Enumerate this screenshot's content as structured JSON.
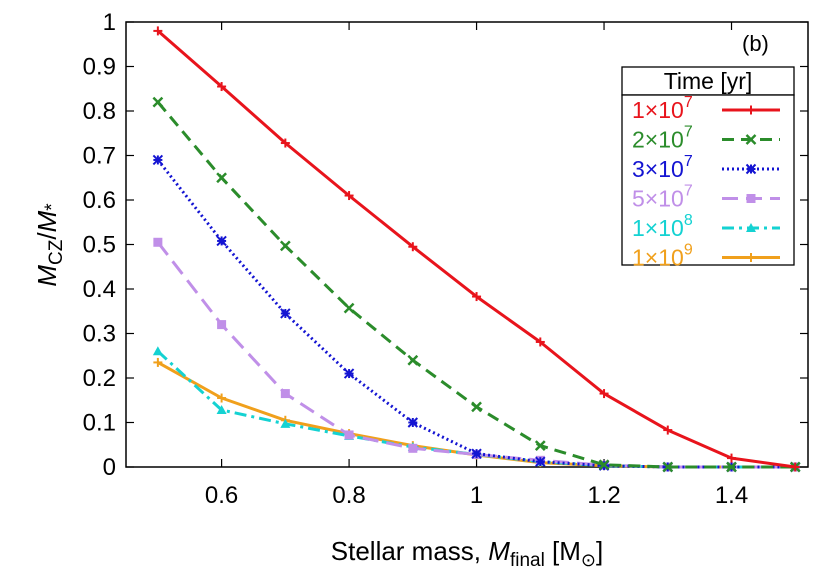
{
  "chart_data": {
    "type": "line",
    "panel_label": "(b)",
    "xlabel": {
      "prefix": "Stellar mass, ",
      "var": "M",
      "sub": "final",
      "unit_open": " [M",
      "unit_symbol": "⊙",
      "unit_close": "]"
    },
    "ylabel": {
      "var": "M",
      "sub": "CZ",
      "slash": "/",
      "var2": "M",
      "star": "*"
    },
    "xlim": [
      0.45,
      1.52
    ],
    "ylim": [
      0,
      1
    ],
    "xticks": [
      "0.6",
      "0.8",
      "1",
      "1.2",
      "1.4"
    ],
    "xtick_values": [
      0.6,
      0.8,
      1.0,
      1.2,
      1.4
    ],
    "yticks": [
      "0",
      "0.1",
      "0.2",
      "0.3",
      "0.4",
      "0.5",
      "0.6",
      "0.7",
      "0.8",
      "0.9",
      "1"
    ],
    "ytick_values": [
      0,
      0.1,
      0.2,
      0.3,
      0.4,
      0.5,
      0.6,
      0.7,
      0.8,
      0.9,
      1.0
    ],
    "legend_title": "Time [yr]",
    "legend_position": "top-right",
    "series": [
      {
        "name": "1×10",
        "exp": "7",
        "color": "#e8141c",
        "dash": "",
        "marker": "plus",
        "x": [
          0.5,
          0.6,
          0.7,
          0.8,
          0.9,
          1.0,
          1.1,
          1.2,
          1.3,
          1.4,
          1.5
        ],
        "y": [
          0.98,
          0.855,
          0.728,
          0.61,
          0.495,
          0.383,
          0.281,
          0.165,
          0.083,
          0.02,
          0.0
        ]
      },
      {
        "name": "2×10",
        "exp": "7",
        "color": "#2b8c2b",
        "dash": "12,7",
        "marker": "x",
        "x": [
          0.5,
          0.6,
          0.7,
          0.8,
          0.9,
          1.0,
          1.1,
          1.2,
          1.3,
          1.4,
          1.5
        ],
        "y": [
          0.82,
          0.65,
          0.497,
          0.357,
          0.24,
          0.135,
          0.048,
          0.005,
          0.0,
          0.0,
          0.0
        ]
      },
      {
        "name": "3×10",
        "exp": "7",
        "color": "#1414d2",
        "dash": "2,3",
        "marker": "xplus",
        "x": [
          0.5,
          0.6,
          0.7,
          0.8,
          0.9,
          1.0,
          1.1,
          1.2,
          1.3,
          1.4,
          1.5
        ],
        "y": [
          0.69,
          0.508,
          0.345,
          0.21,
          0.1,
          0.03,
          0.012,
          0.003,
          0.0,
          0.0,
          0.0
        ]
      },
      {
        "name": "5×10",
        "exp": "7",
        "color": "#c08fe8",
        "dash": "16,8",
        "marker": "square",
        "x": [
          0.5,
          0.6,
          0.7,
          0.8,
          0.9,
          1.0,
          1.1,
          1.2,
          1.3,
          1.4,
          1.5
        ],
        "y": [
          0.505,
          0.32,
          0.165,
          0.072,
          0.042,
          0.028,
          0.015,
          0.004,
          0.0,
          0.0,
          0.0
        ]
      },
      {
        "name": "1×10",
        "exp": "8",
        "color": "#14d2d2",
        "dash": "12,5,3,5",
        "marker": "triangle",
        "x": [
          0.5,
          0.6,
          0.7,
          0.8,
          0.9,
          1.0,
          1.1,
          1.2,
          1.3,
          1.4,
          1.5
        ],
        "y": [
          0.26,
          0.128,
          0.097,
          0.07,
          0.045,
          0.028,
          0.012,
          0.003,
          0.0,
          0.0,
          0.0
        ]
      },
      {
        "name": "1×10",
        "exp": "9",
        "color": "#f0a01c",
        "dash": "",
        "marker": "plus",
        "x": [
          0.5,
          0.6,
          0.7,
          0.8,
          0.9,
          1.0,
          1.1,
          1.2,
          1.3,
          1.4,
          1.5
        ],
        "y": [
          0.235,
          0.155,
          0.105,
          0.075,
          0.048,
          0.027,
          0.01,
          0.003,
          0.0,
          0.0,
          0.0
        ]
      }
    ]
  }
}
